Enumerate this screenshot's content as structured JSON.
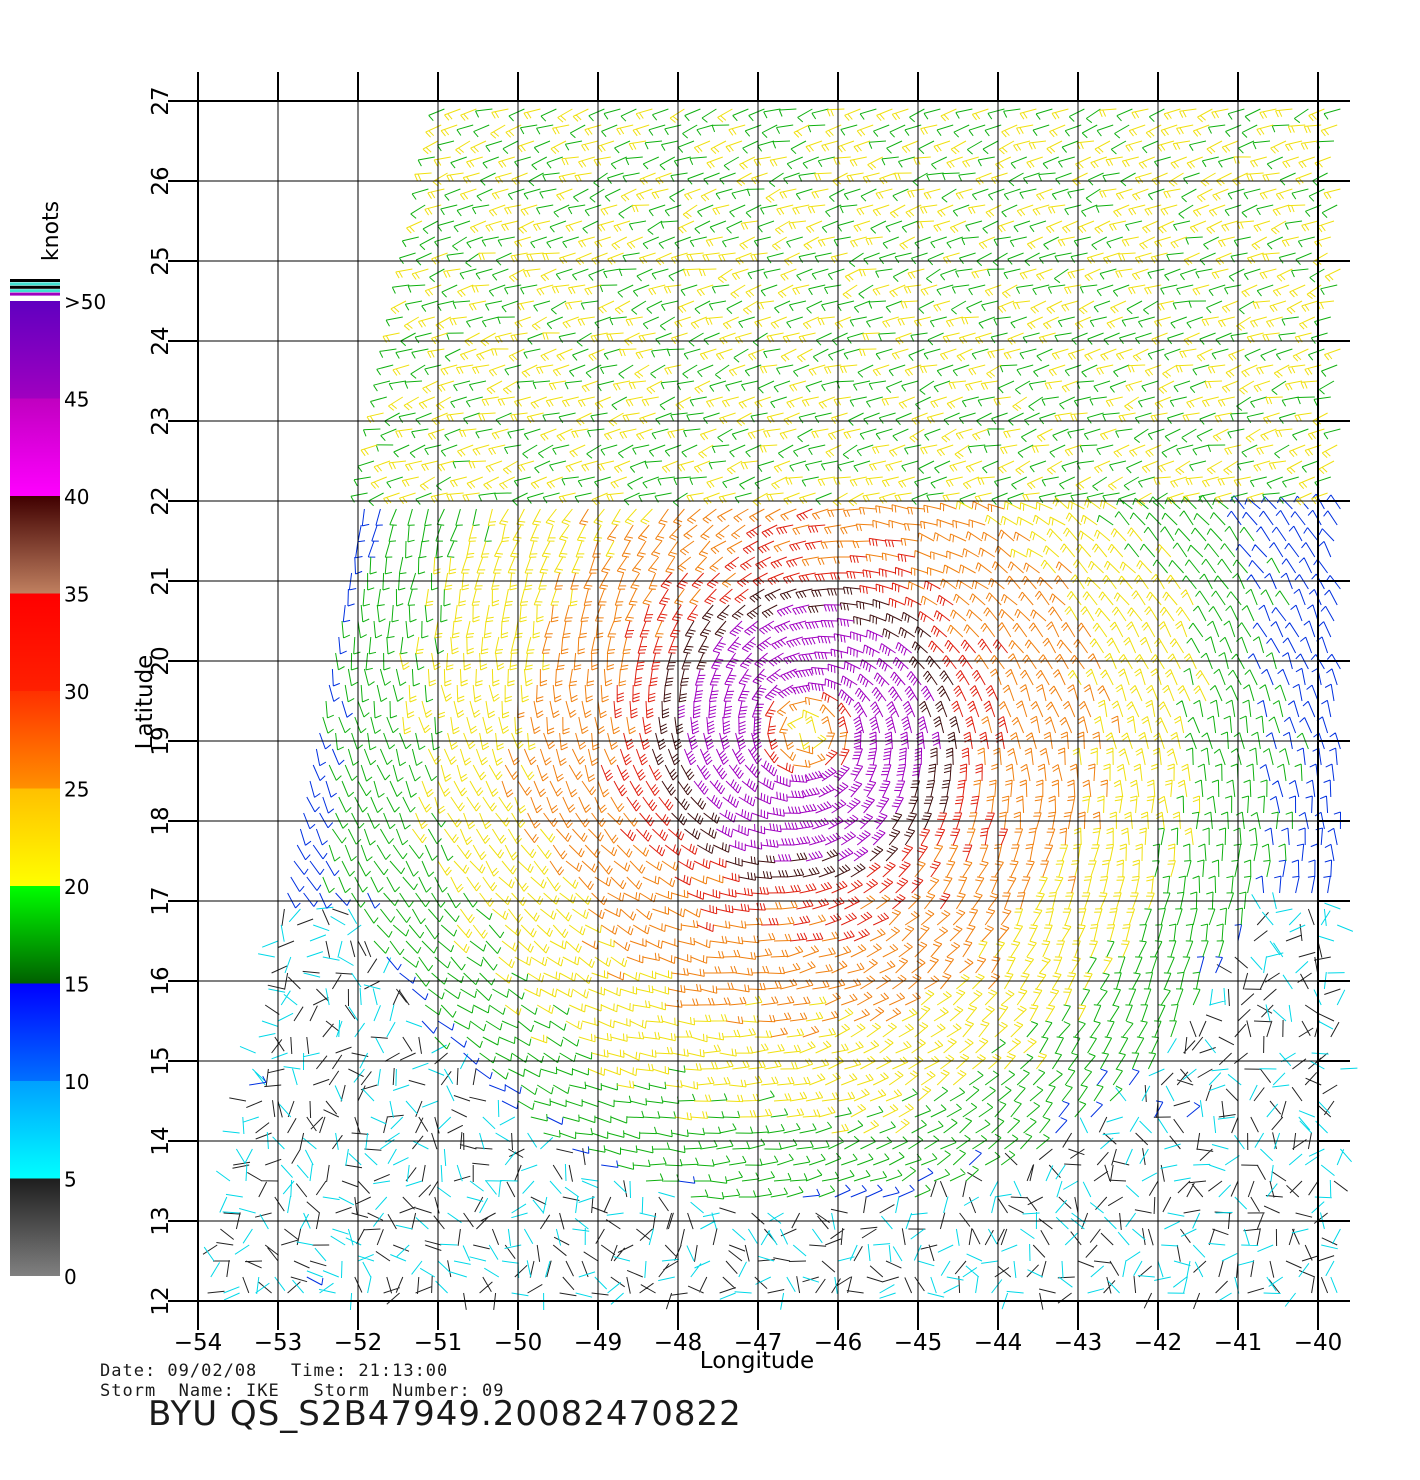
{
  "chart_data": {
    "type": "wind_barb_field",
    "xlabel": "Longitude",
    "ylabel": "Latitude",
    "xlim": [
      -54,
      -40
    ],
    "ylim": [
      12,
      27
    ],
    "x_ticks": [
      "-54",
      "-53",
      "-52",
      "-51",
      "-50",
      "-49",
      "-48",
      "-47",
      "-46",
      "-45",
      "-44",
      "-43",
      "-42",
      "-41",
      "-40"
    ],
    "y_ticks": [
      "12",
      "13",
      "14",
      "15",
      "16",
      "17",
      "18",
      "19",
      "20",
      "21",
      "22",
      "23",
      "24",
      "25",
      "26",
      "27"
    ],
    "grid": true,
    "storm_center": {
      "lon": -46.4,
      "lat": 19.1
    },
    "swath": {
      "lon_west_at_north": -51,
      "lon_west_at_south": -54,
      "lon_east": -39.7
    },
    "colorbar": {
      "unit": "knots",
      "levels": [
        {
          "min": 0,
          "max": 5,
          "colors": [
            "#808080",
            "#1e1e1e"
          ]
        },
        {
          "min": 5,
          "max": 10,
          "colors": [
            "#00ffff",
            "#00a0ff"
          ]
        },
        {
          "min": 10,
          "max": 15,
          "colors": [
            "#0070ff",
            "#0000ff"
          ]
        },
        {
          "min": 15,
          "max": 20,
          "colors": [
            "#006000",
            "#00ff00"
          ]
        },
        {
          "min": 20,
          "max": 25,
          "colors": [
            "#ffff00",
            "#ffc000"
          ]
        },
        {
          "min": 25,
          "max": 30,
          "colors": [
            "#ff9000",
            "#ff3000"
          ]
        },
        {
          "min": 30,
          "max": 35,
          "colors": [
            "#ff2000",
            "#ff0000"
          ]
        },
        {
          "min": 35,
          "max": 40,
          "colors": [
            "#c08060",
            "#400000"
          ]
        },
        {
          "min": 40,
          "max": 45,
          "colors": [
            "#ff00ff",
            "#c000c0"
          ]
        },
        {
          "min": 45,
          "max": 50,
          "colors": [
            "#a000c0",
            "#6000c0"
          ]
        }
      ],
      "tick_labels": [
        "0",
        "5",
        "10",
        "15",
        "20",
        "25",
        "30",
        "35",
        "40",
        "45",
        ">50"
      ]
    }
  },
  "footer": {
    "date_line": "Date: 09/02/08   Time: 21:13:00",
    "storm_line": "Storm  Name: IKE   Storm  Number: 09",
    "id_line": "BYU  QS_S2B47949.20082470822"
  }
}
